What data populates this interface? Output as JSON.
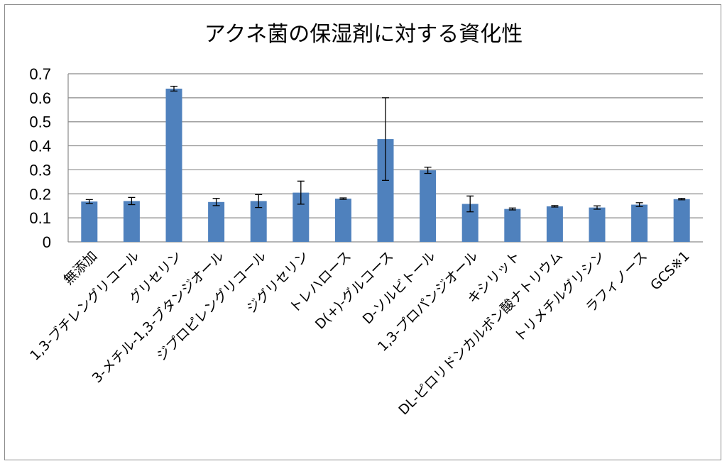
{
  "chart_data": {
    "type": "bar",
    "title": "アクネ菌の保湿剤に対する資化性",
    "xlabel": "",
    "ylabel": "",
    "ylim": [
      0,
      0.7
    ],
    "yticks": [
      "0",
      "0.1",
      "0.2",
      "0.3",
      "0.4",
      "0.5",
      "0.6",
      "0.7"
    ],
    "grid": true,
    "legend": "none",
    "bar_color": "#4f81bd",
    "categories": [
      "無添加",
      "1,3-ブチレングリコール",
      "グリセリン",
      "3-メチル-1,3-ブタンジオール",
      "ジプロピレングリコール",
      "ジグリセリン",
      "トレハロース",
      "D(+)-グルコース",
      "D-ソルビトール",
      "1,3-プロパンジオール",
      "キシリット",
      "DL-ピロリドンカルボン酸ナトリウム",
      "トリメチルグリシン",
      "ラフィノース",
      "GCS※1"
    ],
    "values": [
      0.168,
      0.17,
      0.638,
      0.166,
      0.17,
      0.205,
      0.18,
      0.428,
      0.298,
      0.158,
      0.137,
      0.148,
      0.143,
      0.155,
      0.178
    ],
    "errors": [
      0.008,
      0.015,
      0.01,
      0.015,
      0.027,
      0.048,
      0.003,
      0.172,
      0.013,
      0.033,
      0.004,
      0.003,
      0.007,
      0.008,
      0.003
    ]
  }
}
